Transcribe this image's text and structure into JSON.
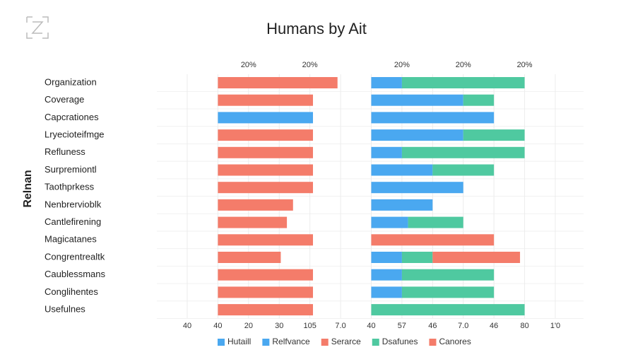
{
  "chart_data": {
    "type": "bar",
    "orientation": "horizontal",
    "title": "Humans by Ait",
    "y_label": "Relnan",
    "categories": [
      "Organization",
      "Coverage",
      "Capcrationes",
      "Lryecioteifmge",
      "Refluness",
      "Surpremiontl",
      "Taothprkess",
      "Nenbrervioblk",
      "Cantlefirening",
      "Magicatanes",
      "Congrentrealtk",
      "Caublessmans",
      "Conglihentes",
      "Usefulnes"
    ],
    "xlim": [
      0,
      12
    ],
    "xticks": [
      {
        "value": 0,
        "label": "40"
      },
      {
        "value": 1,
        "label": "40"
      },
      {
        "value": 2,
        "label": "20"
      },
      {
        "value": 3,
        "label": "30"
      },
      {
        "value": 4,
        "label": "105"
      },
      {
        "value": 5,
        "label": "7.0"
      },
      {
        "value": 6,
        "label": "40"
      },
      {
        "value": 7,
        "label": "57"
      },
      {
        "value": 8,
        "label": "46"
      },
      {
        "value": 9,
        "label": "7.0"
      },
      {
        "value": 10,
        "label": "46"
      },
      {
        "value": 11,
        "label": "80"
      },
      {
        "value": 12,
        "label": "1'0"
      }
    ],
    "top_ticks": [
      {
        "value": 2,
        "label": "20%"
      },
      {
        "value": 4,
        "label": "20%"
      },
      {
        "value": 7,
        "label": "20%"
      },
      {
        "value": 9,
        "label": "20%"
      },
      {
        "value": 11,
        "label": "20%"
      }
    ],
    "grid": true,
    "legend": "bottom",
    "series": [
      {
        "name": "Hutaill",
        "color": "#4aa8f0",
        "base": 1,
        "values": [
          null,
          null,
          3.1,
          null,
          null,
          null,
          null,
          null,
          null,
          null,
          null,
          null,
          null,
          null
        ]
      },
      {
        "name": "Relfvance",
        "color": "#4aa8f0",
        "base": 6,
        "values": [
          1,
          3,
          4,
          3,
          1,
          2,
          3,
          2,
          1.2,
          null,
          1,
          1,
          1,
          null
        ]
      },
      {
        "name": "Serarce",
        "color": "#f47c6a",
        "base": 1,
        "values": [
          3.9,
          3.1,
          null,
          3.1,
          3.1,
          3.1,
          3.1,
          2.45,
          2.25,
          3.1,
          2.05,
          3.1,
          3.1,
          3.1
        ]
      },
      {
        "name": "Dsafunes",
        "color": "#4fc9a0",
        "base": 6,
        "values": [
          4,
          1,
          null,
          2,
          4,
          2,
          null,
          null,
          1.8,
          null,
          1,
          3,
          3,
          5
        ]
      },
      {
        "name": "Canores",
        "color": "#f47c6a",
        "base": 6,
        "values": [
          null,
          null,
          null,
          null,
          null,
          null,
          null,
          null,
          null,
          4,
          2.85,
          null,
          null,
          null
        ]
      }
    ]
  }
}
